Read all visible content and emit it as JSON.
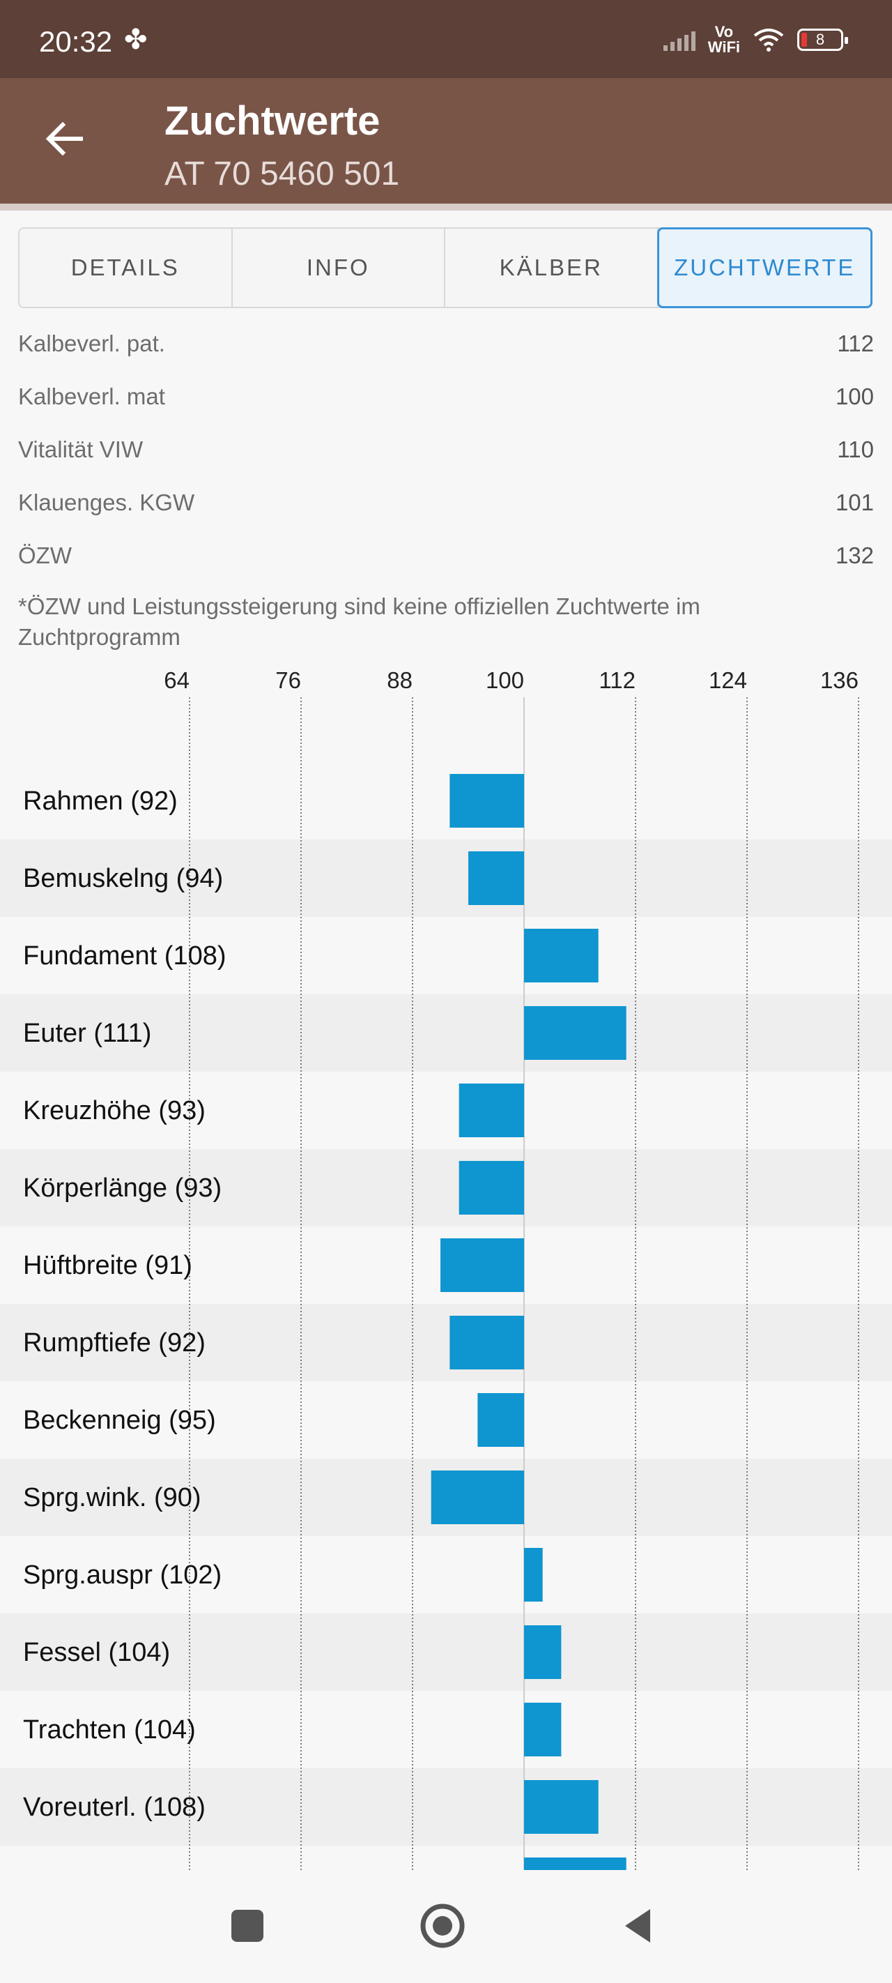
{
  "status_bar": {
    "time": "20:32",
    "network": "Vo\nWiFi",
    "battery": "8"
  },
  "app_bar": {
    "title": "Zuchtwerte",
    "subtitle": "AT 70 5460 501"
  },
  "tabs": [
    {
      "label": "DETAILS",
      "active": false
    },
    {
      "label": "INFO",
      "active": false
    },
    {
      "label": "KÄLBER",
      "active": false
    },
    {
      "label": "ZUCHTWERTE",
      "active": true
    }
  ],
  "values": [
    {
      "label": "Kalbeverl. pat.",
      "value": "112"
    },
    {
      "label": "Kalbeverl. mat",
      "value": "100"
    },
    {
      "label": "Vitalität VIW",
      "value": "110"
    },
    {
      "label": "Klauenges. KGW",
      "value": "101"
    },
    {
      "label": "ÖZW",
      "value": "132"
    }
  ],
  "note": "*ÖZW und Leistungssteigerung sind keine offiziellen Zuchtwerte im Zuchtprogramm",
  "chart_data": {
    "type": "bar",
    "orientation": "horizontal",
    "baseline": 100,
    "xlim": [
      52,
      136
    ],
    "xticks": [
      64,
      76,
      88,
      100,
      112,
      124,
      136
    ],
    "bar_color": "#0f95d0",
    "categories": [
      "Rahmen (92)",
      "Bemuskelng (94)",
      "Fundament (108)",
      "Euter (111)",
      "Kreuzhöhe (93)",
      "Körperlänge (93)",
      "Hüftbreite (91)",
      "Rumpftiefe (92)",
      "Beckenneig (95)",
      "Sprg.wink. (90)",
      "Sprg.auspr (102)",
      "Fessel (104)",
      "Trachten (104)",
      "Voreuterl. (108)",
      ""
    ],
    "values": [
      92,
      94,
      108,
      111,
      93,
      93,
      91,
      92,
      95,
      90,
      102,
      104,
      104,
      108,
      111
    ]
  }
}
